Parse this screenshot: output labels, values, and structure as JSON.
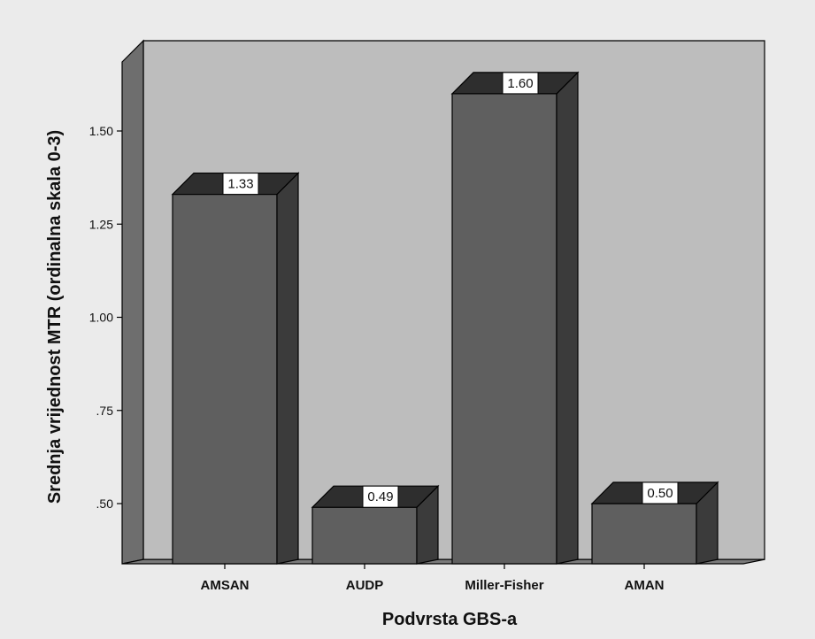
{
  "chart_data": {
    "type": "bar",
    "style": "3d",
    "categories": [
      "AMSAN",
      "AUDP",
      "Miller-Fisher",
      "AMAN"
    ],
    "values": [
      1.33,
      0.49,
      1.6,
      0.5
    ],
    "value_labels": [
      "1.33",
      "0.49",
      "1.60",
      "0.50"
    ],
    "xlabel": "Podvrsta GBS-a",
    "ylabel": "Srednja vrijednost MTR (ordinalna skala 0-3)",
    "ylim": [
      0.35,
      1.65
    ],
    "yticks": [
      0.5,
      0.75,
      1.0,
      1.25,
      1.5
    ],
    "ytick_labels": [
      ".50",
      ".75",
      "1.00",
      "1.25",
      "1.50"
    ],
    "grid": false,
    "legend": "none"
  },
  "colors": {
    "background": "#ebebeb",
    "wall": "#bdbdbd",
    "side_wall": "#6e6e6e",
    "floor": "#7a7a7a",
    "bar_front": "#5f5f5f",
    "bar_side": "#3b3b3b",
    "bar_top": "#2e2e2e",
    "label_box": "#ffffff"
  }
}
